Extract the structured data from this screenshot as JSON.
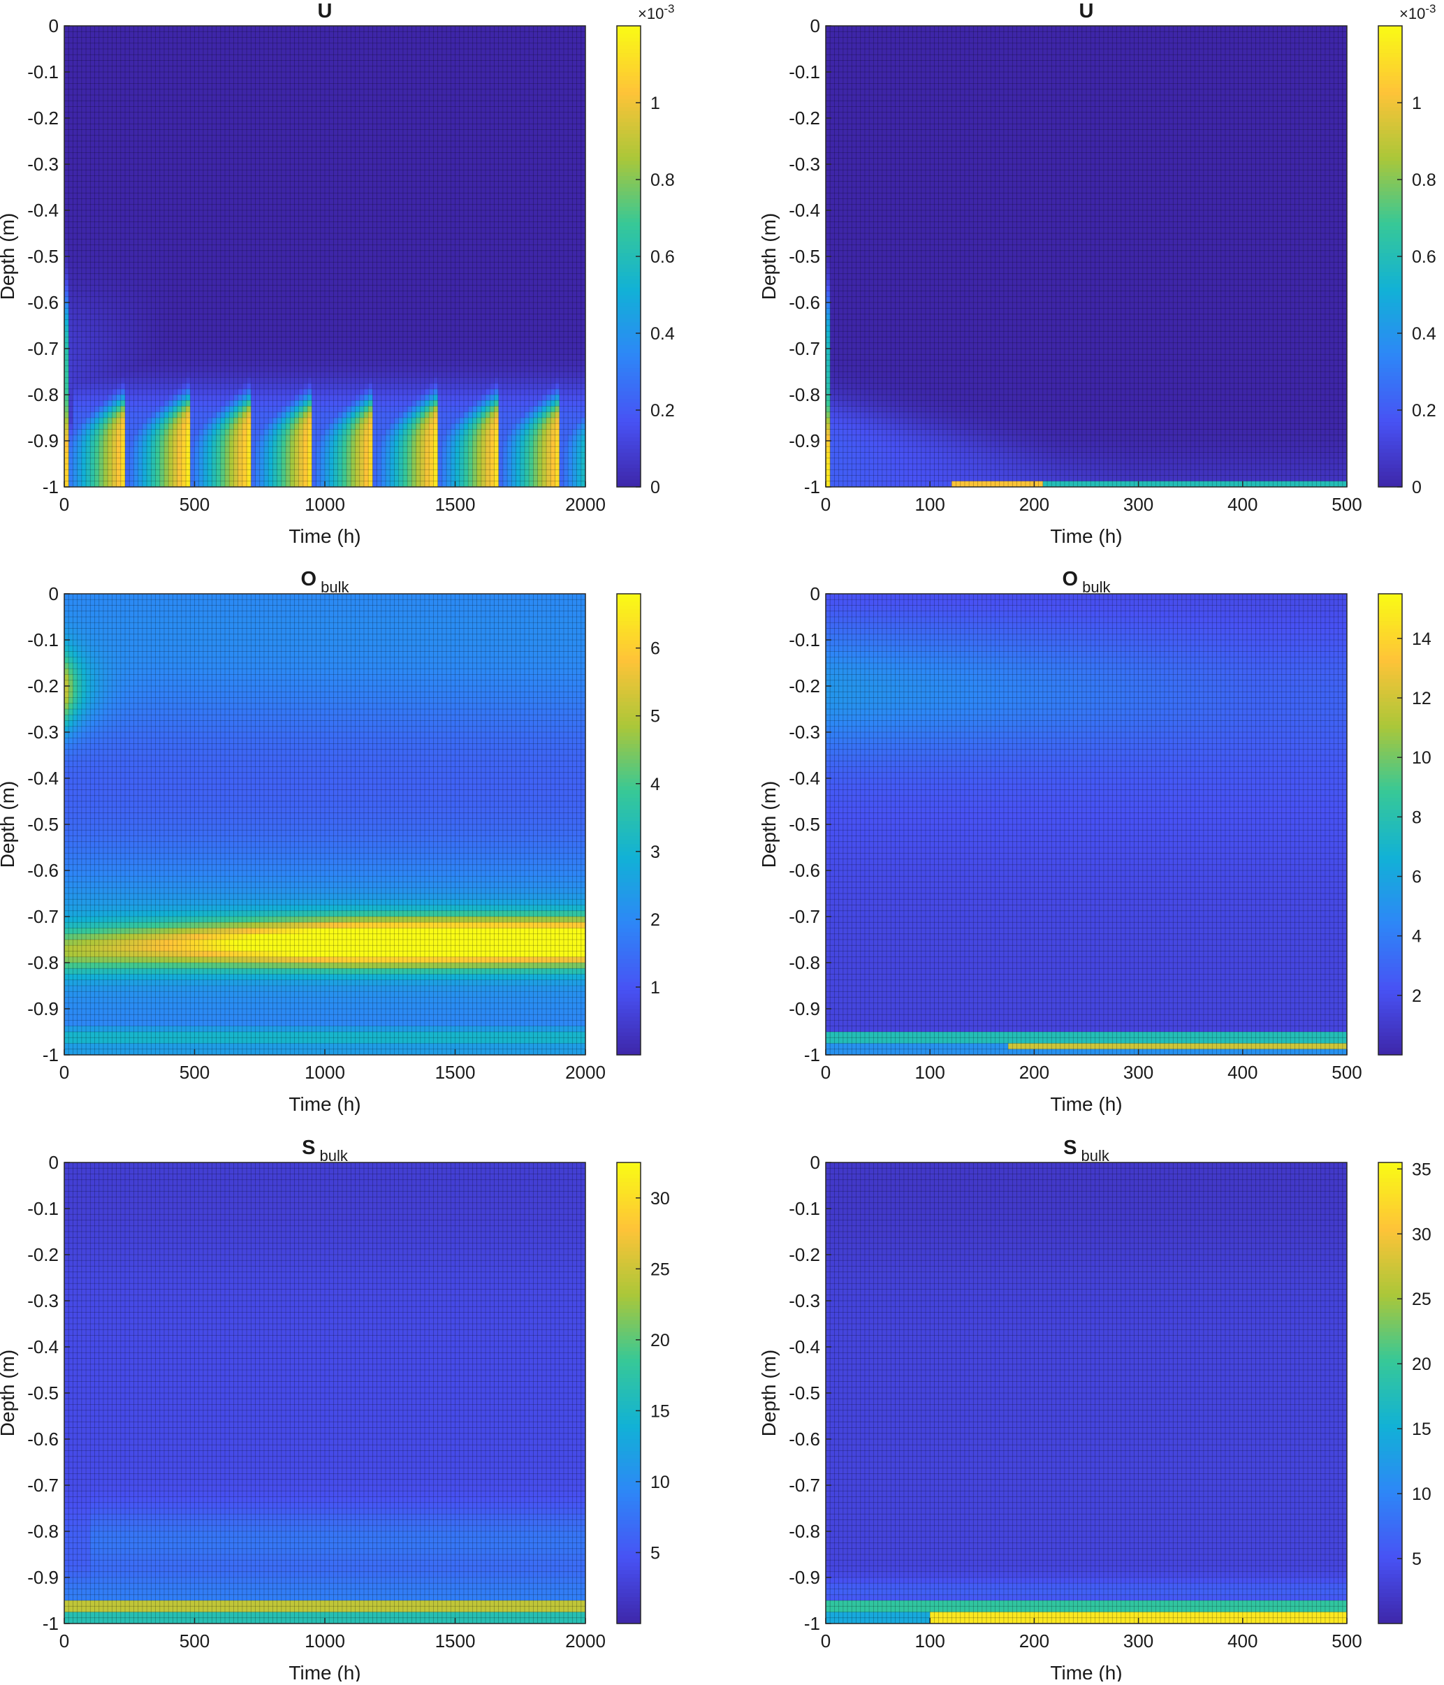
{
  "chart_data": [
    {
      "type": "heatmap",
      "title": "U",
      "title_subscript": "",
      "xlabel": "Time (h)",
      "ylabel": "Depth (m)",
      "xlim": [
        0,
        2000
      ],
      "ylim": [
        -1,
        0
      ],
      "xticks": [
        0,
        500,
        1000,
        1500,
        2000
      ],
      "yticks": [
        0,
        -0.1,
        -0.2,
        -0.3,
        -0.4,
        -0.5,
        -0.6,
        -0.7,
        -0.8,
        -0.9,
        -1
      ],
      "colorbar": {
        "min": 0,
        "max": 0.0012,
        "ticks": [
          0,
          0.2,
          0.4,
          0.6,
          0.8,
          1
        ],
        "multiplier_label": "×10",
        "multiplier_exponent": "-3"
      },
      "colormap": "parula",
      "pattern": "U_long"
    },
    {
      "type": "heatmap",
      "title": "U",
      "title_subscript": "",
      "xlabel": "Time (h)",
      "ylabel": "Depth (m)",
      "xlim": [
        0,
        500
      ],
      "ylim": [
        -1,
        0
      ],
      "xticks": [
        0,
        100,
        200,
        300,
        400,
        500
      ],
      "yticks": [
        0,
        -0.1,
        -0.2,
        -0.3,
        -0.4,
        -0.5,
        -0.6,
        -0.7,
        -0.8,
        -0.9,
        -1
      ],
      "colorbar": {
        "min": 0,
        "max": 0.0012,
        "ticks": [
          0,
          0.2,
          0.4,
          0.6,
          0.8,
          1
        ],
        "multiplier_label": "×10",
        "multiplier_exponent": "-3"
      },
      "colormap": "parula",
      "pattern": "U_short"
    },
    {
      "type": "heatmap",
      "title": "O",
      "title_subscript": "bulk",
      "xlabel": "Time (h)",
      "ylabel": "Depth (m)",
      "xlim": [
        0,
        2000
      ],
      "ylim": [
        -1,
        0
      ],
      "xticks": [
        0,
        500,
        1000,
        1500,
        2000
      ],
      "yticks": [
        0,
        -0.1,
        -0.2,
        -0.3,
        -0.4,
        -0.5,
        -0.6,
        -0.7,
        -0.8,
        -0.9,
        -1
      ],
      "colorbar": {
        "min": 0,
        "max": 6.8,
        "ticks": [
          1,
          2,
          3,
          4,
          5,
          6
        ],
        "multiplier_label": "",
        "multiplier_exponent": ""
      },
      "colormap": "parula",
      "pattern": "O_long"
    },
    {
      "type": "heatmap",
      "title": "O",
      "title_subscript": "bulk",
      "xlabel": "Time (h)",
      "ylabel": "Depth (m)",
      "xlim": [
        0,
        500
      ],
      "ylim": [
        -1,
        0
      ],
      "xticks": [
        0,
        100,
        200,
        300,
        400,
        500
      ],
      "yticks": [
        0,
        -0.1,
        -0.2,
        -0.3,
        -0.4,
        -0.5,
        -0.6,
        -0.7,
        -0.8,
        -0.9,
        -1
      ],
      "colorbar": {
        "min": 0,
        "max": 15.5,
        "ticks": [
          2,
          4,
          6,
          8,
          10,
          12,
          14
        ],
        "multiplier_label": "",
        "multiplier_exponent": ""
      },
      "colormap": "parula",
      "pattern": "O_short"
    },
    {
      "type": "heatmap",
      "title": "S",
      "title_subscript": "bulk",
      "xlabel": "Time (h)",
      "ylabel": "Depth (m)",
      "xlim": [
        0,
        2000
      ],
      "ylim": [
        -1,
        0
      ],
      "xticks": [
        0,
        500,
        1000,
        1500,
        2000
      ],
      "yticks": [
        0,
        -0.1,
        -0.2,
        -0.3,
        -0.4,
        -0.5,
        -0.6,
        -0.7,
        -0.8,
        -0.9,
        -1
      ],
      "colorbar": {
        "min": 0,
        "max": 32.5,
        "ticks": [
          5,
          10,
          15,
          20,
          25,
          30
        ],
        "multiplier_label": "",
        "multiplier_exponent": ""
      },
      "colormap": "parula",
      "pattern": "S_long"
    },
    {
      "type": "heatmap",
      "title": "S",
      "title_subscript": "bulk",
      "xlabel": "Time (h)",
      "ylabel": "Depth (m)",
      "xlim": [
        0,
        500
      ],
      "ylim": [
        -1,
        0
      ],
      "xticks": [
        0,
        100,
        200,
        300,
        400,
        500
      ],
      "yticks": [
        0,
        -0.1,
        -0.2,
        -0.3,
        -0.4,
        -0.5,
        -0.6,
        -0.7,
        -0.8,
        -0.9,
        -1
      ],
      "colorbar": {
        "min": 0,
        "max": 35.5,
        "ticks": [
          5,
          10,
          15,
          20,
          25,
          30,
          35
        ],
        "multiplier_label": "",
        "multiplier_exponent": ""
      },
      "colormap": "parula",
      "pattern": "S_short"
    }
  ]
}
